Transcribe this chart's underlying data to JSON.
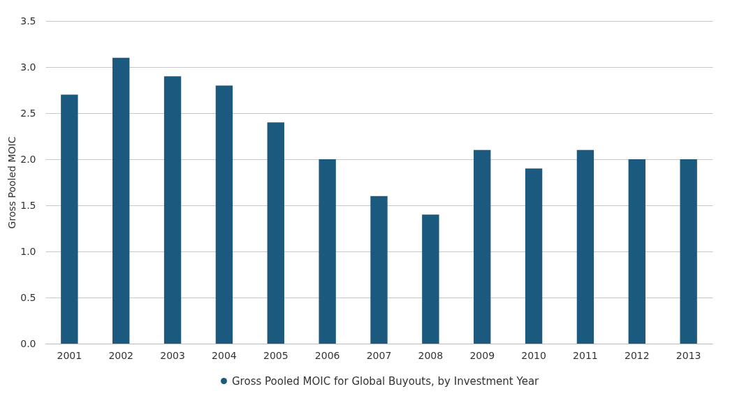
{
  "chart_data": {
    "type": "bar",
    "ylabel": "Gross Pooled MOIC",
    "categories": [
      "2001",
      "2002",
      "2003",
      "2004",
      "2005",
      "2006",
      "2007",
      "2008",
      "2009",
      "2010",
      "2011",
      "2012",
      "2013"
    ],
    "series": [
      {
        "name": "Gross Pooled MOIC for Global Buyouts, by Investment Year",
        "color": "#1b5a7e",
        "values": [
          2.7,
          3.1,
          2.9,
          2.8,
          2.4,
          2.0,
          1.6,
          1.4,
          2.1,
          1.9,
          2.1,
          2.0,
          2.0
        ]
      }
    ],
    "ylim": [
      0,
      3.5
    ],
    "yticks": [
      {
        "value": 0,
        "label": "0.0"
      },
      {
        "value": 0.5,
        "label": "0.5"
      },
      {
        "value": 1,
        "label": "1.0"
      },
      {
        "value": 1.5,
        "label": "1.5"
      },
      {
        "value": 2,
        "label": "2.0"
      },
      {
        "value": 2.5,
        "label": "2.5"
      },
      {
        "value": 3,
        "label": "3.0"
      },
      {
        "value": 3.5,
        "label": "3.5"
      }
    ],
    "grid": "y",
    "legend": "bottom"
  }
}
